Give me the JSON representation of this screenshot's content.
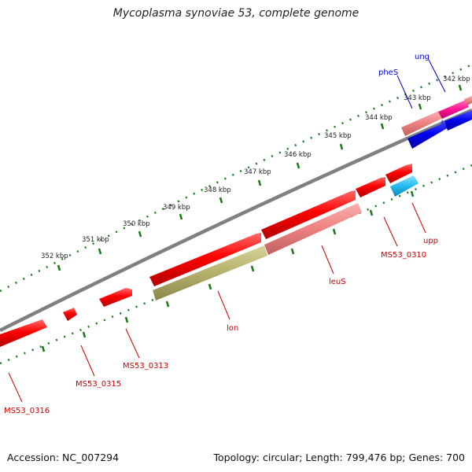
{
  "header": {
    "title": "Mycoplasma synoviae 53, complete genome"
  },
  "footer": {
    "accession": "Accession: NC_007294",
    "summary": "Topology: circular; Length: 799,476 bp; Genes: 700"
  },
  "scale_ticks": [
    "342 kbp",
    "343 kbp",
    "344 kbp",
    "345 kbp",
    "346 kbp",
    "347 kbp",
    "348 kbp",
    "349 kbp",
    "350 kbp",
    "351 kbp",
    "352 kbp"
  ],
  "gene_labels": [
    {
      "text": "ung",
      "color": "#0000cc"
    },
    {
      "text": "pheS",
      "color": "#0000cc"
    },
    {
      "text": "MS53_0310",
      "color": "#cc0000"
    },
    {
      "text": "upp",
      "color": "#cc0000"
    },
    {
      "text": "leuS",
      "color": "#cc0000"
    },
    {
      "text": "lon",
      "color": "#cc0000"
    },
    {
      "text": "MS53_0313",
      "color": "#cc0000"
    },
    {
      "text": "MS53_0315",
      "color": "#cc0000"
    },
    {
      "text": "MS53_0316",
      "color": "#cc0000"
    }
  ],
  "colors": {
    "backbone": "#808080",
    "tick_dots": "#1a7a1a",
    "feature_red": "#ff0000",
    "feature_pink": "#f08080",
    "feature_olive": "#b5b06a",
    "feature_blue": "#0000ee",
    "feature_cyan": "#22bbee",
    "feature_magenta": "#ff1493"
  }
}
